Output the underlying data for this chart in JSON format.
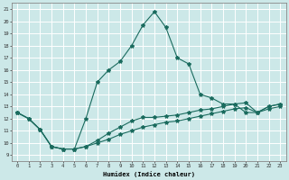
{
  "xlabel": "Humidex (Indice chaleur)",
  "bg_color": "#cce8e8",
  "grid_color": "#ffffff",
  "line_color": "#1a6b5e",
  "xlim": [
    -0.5,
    23.5
  ],
  "ylim": [
    8.5,
    21.5
  ],
  "xticks": [
    0,
    1,
    2,
    3,
    4,
    5,
    6,
    7,
    8,
    9,
    10,
    11,
    12,
    13,
    14,
    15,
    16,
    17,
    18,
    19,
    20,
    21,
    22,
    23
  ],
  "yticks": [
    9,
    10,
    11,
    12,
    13,
    14,
    15,
    16,
    17,
    18,
    19,
    20,
    21
  ],
  "line1_x": [
    0,
    1,
    2,
    3,
    4,
    5,
    6,
    7,
    8,
    9,
    10,
    11,
    12,
    13,
    14,
    15,
    16,
    17,
    18,
    19,
    20,
    21,
    22,
    23
  ],
  "line1_y": [
    12.5,
    12.0,
    11.1,
    9.7,
    9.5,
    9.5,
    12.0,
    15.0,
    16.0,
    16.7,
    18.0,
    19.7,
    20.8,
    19.5,
    17.0,
    16.5,
    14.0,
    13.7,
    13.2,
    13.2,
    12.5,
    12.5,
    13.0,
    13.2
  ],
  "line2_x": [
    0,
    1,
    2,
    3,
    4,
    5,
    6,
    7,
    8,
    9,
    10,
    11,
    12,
    13,
    14,
    15,
    16,
    17,
    18,
    19,
    20,
    21,
    22,
    23
  ],
  "line2_y": [
    12.5,
    12.0,
    11.1,
    9.7,
    9.5,
    9.5,
    9.7,
    10.2,
    10.8,
    11.3,
    11.8,
    12.1,
    12.1,
    12.2,
    12.3,
    12.5,
    12.7,
    12.8,
    13.0,
    13.2,
    13.3,
    12.5,
    13.0,
    13.2
  ],
  "line3_x": [
    0,
    1,
    2,
    3,
    4,
    5,
    6,
    7,
    8,
    9,
    10,
    11,
    12,
    13,
    14,
    15,
    16,
    17,
    18,
    19,
    20,
    21,
    22,
    23
  ],
  "line3_y": [
    12.5,
    12.0,
    11.1,
    9.7,
    9.5,
    9.5,
    9.7,
    10.0,
    10.3,
    10.7,
    11.0,
    11.3,
    11.5,
    11.7,
    11.8,
    12.0,
    12.2,
    12.4,
    12.6,
    12.8,
    12.9,
    12.5,
    12.8,
    13.0
  ]
}
